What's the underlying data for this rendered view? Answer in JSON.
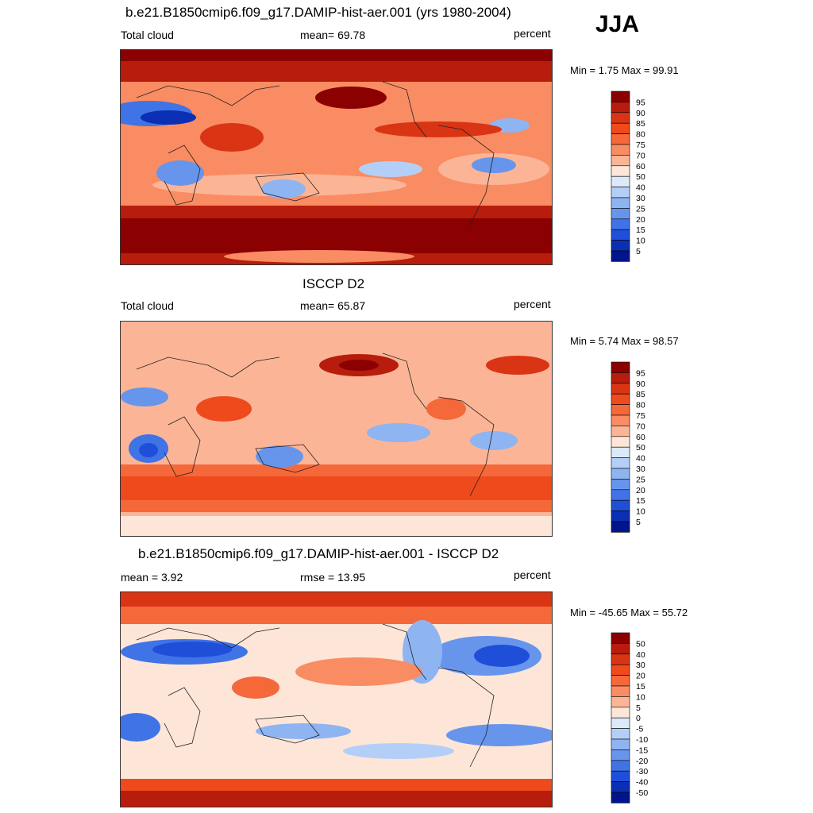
{
  "season": "JJA",
  "panels": [
    {
      "title": "b.e21.B1850cmip6.f09_g17.DAMIP-hist-aer.001 (yrs 1980-2004)",
      "left_label": "Total cloud",
      "center_label": "mean=  69.78",
      "right_label": "percent",
      "minmax": "Min =   1.75 Max =  99.91",
      "colorbar": {
        "labels": [
          "95",
          "90",
          "85",
          "80",
          "75",
          "70",
          "60",
          "50",
          "40",
          "30",
          "25",
          "20",
          "15",
          "10",
          "5"
        ],
        "colors": [
          "#8b0000",
          "#b71c0c",
          "#d93414",
          "#ee4a1c",
          "#f5683a",
          "#f98c62",
          "#fbb596",
          "#fde6d8",
          "#dbe9fb",
          "#b4cff7",
          "#8eb4f2",
          "#6895ec",
          "#4073e6",
          "#1f4fd9",
          "#0a2fb5",
          "#00148c"
        ]
      }
    },
    {
      "title": "ISCCP D2",
      "left_label": "Total cloud",
      "center_label": "mean=  65.87",
      "right_label": "percent",
      "minmax": "Min =   5.74 Max =  98.57",
      "colorbar": {
        "labels": [
          "95",
          "90",
          "85",
          "80",
          "75",
          "70",
          "60",
          "50",
          "40",
          "30",
          "25",
          "20",
          "15",
          "10",
          "5"
        ],
        "colors": [
          "#8b0000",
          "#b71c0c",
          "#d93414",
          "#ee4a1c",
          "#f5683a",
          "#f98c62",
          "#fbb596",
          "#fde6d8",
          "#dbe9fb",
          "#b4cff7",
          "#8eb4f2",
          "#6895ec",
          "#4073e6",
          "#1f4fd9",
          "#0a2fb5",
          "#00148c"
        ]
      }
    },
    {
      "title": "b.e21.B1850cmip6.f09_g17.DAMIP-hist-aer.001 - ISCCP D2",
      "left_label": "mean =   3.92",
      "center_label": "rmse =  13.95",
      "right_label": "percent",
      "minmax": "Min = -45.65 Max =  55.72",
      "colorbar": {
        "labels": [
          "50",
          "40",
          "30",
          "20",
          "15",
          "10",
          "5",
          "0",
          "-5",
          "-10",
          "-15",
          "-20",
          "-30",
          "-40",
          "-50"
        ],
        "colors": [
          "#8b0000",
          "#b71c0c",
          "#d93414",
          "#ee4a1c",
          "#f5683a",
          "#f98c62",
          "#fbb596",
          "#fde6d8",
          "#dbe9fb",
          "#b4cff7",
          "#8eb4f2",
          "#6895ec",
          "#4073e6",
          "#1f4fd9",
          "#0a2fb5",
          "#00148c"
        ]
      }
    }
  ]
}
